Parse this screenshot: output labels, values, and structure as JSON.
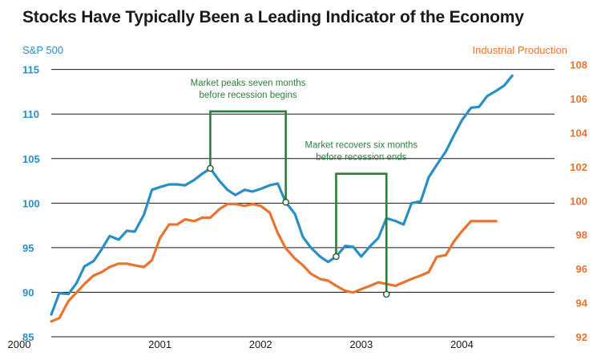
{
  "chart_data": {
    "type": "line",
    "title": "Stocks Have Typically Been a Leading Indicator of the Economy",
    "y_left_label": "S&P 500",
    "y_right_label": "Industrial Production",
    "y_left_ticks": [
      "85",
      "90",
      "95",
      "100",
      "105",
      "110",
      "115"
    ],
    "y_right_ticks": [
      "92",
      "94",
      "96",
      "98",
      "100",
      "102",
      "104",
      "106",
      "108"
    ],
    "y_left_range": [
      85,
      116.5
    ],
    "y_right_range": [
      92,
      108.5
    ],
    "x_ticks": [
      {
        "label": "2000",
        "x": 2000.0
      },
      {
        "label": "2001",
        "x": 2001.0
      },
      {
        "label": "2002",
        "x": 2002.0
      },
      {
        "label": "2003",
        "x": 2003.0
      },
      {
        "label": "2004",
        "x": 2004.0
      }
    ],
    "x_range": [
      2000.0,
      2005.0
    ],
    "colors": {
      "sp500": "#2a8fc4",
      "industrial": "#e8742e",
      "annotation": "#2e7d3a"
    },
    "series": [
      {
        "name": "S&P 500",
        "axis": "left",
        "points": [
          [
            2000.0,
            87.5
          ],
          [
            2000.08,
            89.9
          ],
          [
            2000.17,
            89.8
          ],
          [
            2000.25,
            91.0
          ],
          [
            2000.33,
            92.9
          ],
          [
            2000.42,
            93.5
          ],
          [
            2000.5,
            94.8
          ],
          [
            2000.58,
            96.3
          ],
          [
            2000.67,
            95.9
          ],
          [
            2000.75,
            96.9
          ],
          [
            2000.83,
            96.8
          ],
          [
            2000.92,
            98.7
          ],
          [
            2001.0,
            101.5
          ],
          [
            2001.08,
            101.8
          ],
          [
            2001.17,
            102.1
          ],
          [
            2001.25,
            102.1
          ],
          [
            2001.33,
            102.0
          ],
          [
            2001.42,
            102.6
          ],
          [
            2001.5,
            103.3
          ],
          [
            2001.58,
            103.9
          ],
          [
            2001.67,
            102.5
          ],
          [
            2001.75,
            101.5
          ],
          [
            2001.83,
            100.9
          ],
          [
            2001.92,
            101.5
          ],
          [
            2002.0,
            101.3
          ],
          [
            2002.08,
            101.6
          ],
          [
            2002.17,
            102.0
          ],
          [
            2002.25,
            102.2
          ],
          [
            2002.33,
            100.1
          ],
          [
            2002.42,
            98.8
          ],
          [
            2002.5,
            96.2
          ],
          [
            2002.58,
            95.0
          ],
          [
            2002.67,
            94.0
          ],
          [
            2002.75,
            93.4
          ],
          [
            2002.83,
            94.0
          ],
          [
            2002.92,
            95.2
          ],
          [
            2003.0,
            95.1
          ],
          [
            2003.08,
            94.0
          ],
          [
            2003.17,
            95.2
          ],
          [
            2003.25,
            96.1
          ],
          [
            2003.33,
            98.3
          ],
          [
            2003.42,
            98.0
          ],
          [
            2003.5,
            97.6
          ],
          [
            2003.58,
            100.0
          ],
          [
            2003.67,
            100.2
          ],
          [
            2003.75,
            102.9
          ],
          [
            2003.83,
            104.3
          ],
          [
            2003.92,
            105.8
          ],
          [
            2004.0,
            107.6
          ],
          [
            2004.08,
            109.3
          ],
          [
            2004.17,
            110.7
          ],
          [
            2004.25,
            110.8
          ],
          [
            2004.33,
            112.0
          ],
          [
            2004.42,
            112.6
          ],
          [
            2004.5,
            113.2
          ],
          [
            2004.58,
            114.3
          ]
        ]
      },
      {
        "name": "Industrial Production",
        "axis": "right",
        "points": [
          [
            2000.0,
            92.9
          ],
          [
            2000.08,
            93.1
          ],
          [
            2000.17,
            94.1
          ],
          [
            2000.25,
            94.6
          ],
          [
            2000.33,
            95.1
          ],
          [
            2000.42,
            95.6
          ],
          [
            2000.5,
            95.8
          ],
          [
            2000.58,
            96.1
          ],
          [
            2000.67,
            96.3
          ],
          [
            2000.75,
            96.3
          ],
          [
            2000.83,
            96.2
          ],
          [
            2000.92,
            96.1
          ],
          [
            2001.0,
            96.5
          ],
          [
            2001.08,
            97.8
          ],
          [
            2001.17,
            98.6
          ],
          [
            2001.25,
            98.6
          ],
          [
            2001.33,
            98.9
          ],
          [
            2001.42,
            98.8
          ],
          [
            2001.5,
            99.0
          ],
          [
            2001.58,
            99.0
          ],
          [
            2001.67,
            99.5
          ],
          [
            2001.75,
            99.8
          ],
          [
            2001.83,
            99.8
          ],
          [
            2001.92,
            99.7
          ],
          [
            2002.0,
            99.8
          ],
          [
            2002.08,
            99.7
          ],
          [
            2002.17,
            99.3
          ],
          [
            2002.25,
            98.1
          ],
          [
            2002.33,
            97.2
          ],
          [
            2002.42,
            96.6
          ],
          [
            2002.5,
            96.2
          ],
          [
            2002.58,
            95.7
          ],
          [
            2002.67,
            95.4
          ],
          [
            2002.75,
            95.3
          ],
          [
            2002.83,
            95.0
          ],
          [
            2002.92,
            94.7
          ],
          [
            2003.0,
            94.6
          ],
          [
            2003.08,
            94.8
          ],
          [
            2003.17,
            95.0
          ],
          [
            2003.25,
            95.2
          ],
          [
            2003.33,
            95.1
          ],
          [
            2003.42,
            95.0
          ],
          [
            2003.5,
            95.2
          ],
          [
            2003.58,
            95.4
          ],
          [
            2003.67,
            95.6
          ],
          [
            2003.75,
            95.8
          ],
          [
            2003.83,
            96.7
          ],
          [
            2003.92,
            96.8
          ],
          [
            2004.0,
            97.6
          ],
          [
            2004.08,
            98.2
          ],
          [
            2004.17,
            98.8
          ],
          [
            2004.25,
            98.8
          ],
          [
            2004.33,
            98.8
          ],
          [
            2004.42,
            98.8
          ]
        ]
      }
    ],
    "annotations": [
      {
        "text_lines": [
          "Market peaks seven months",
          "before recession begins"
        ],
        "from": {
          "x": 2001.58,
          "y": 103.9
        },
        "to": {
          "x": 2002.33,
          "y": 100.1
        },
        "bracket_top": 110.3
      },
      {
        "text_lines": [
          "Market recovers six months",
          "before recession ends"
        ],
        "from": {
          "x": 2002.83,
          "y": 94.0
        },
        "to": {
          "x": 2003.33,
          "y": 98.3
        },
        "to_marker_y_right": 94.5,
        "bracket_top": 103.3
      }
    ]
  }
}
